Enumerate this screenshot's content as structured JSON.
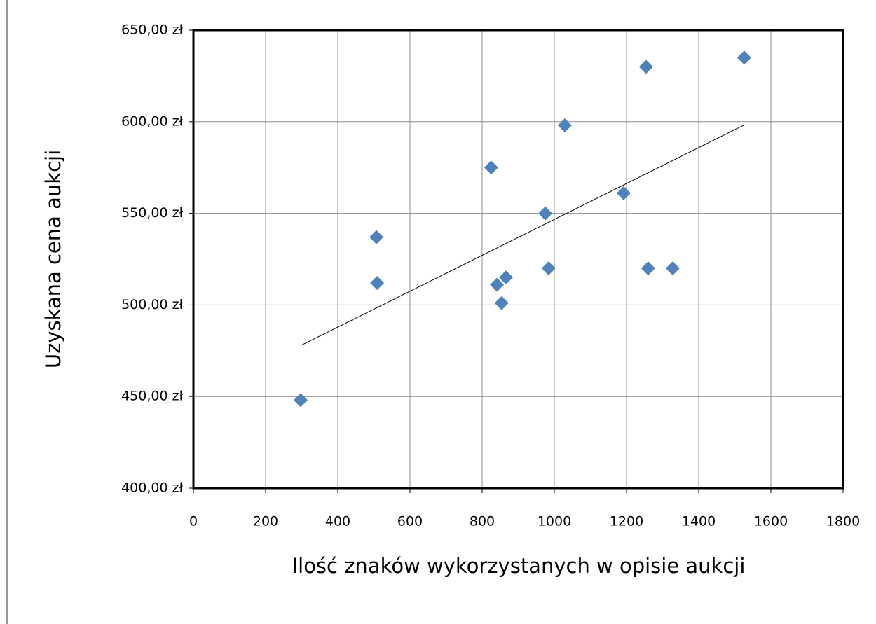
{
  "chart_data": {
    "type": "scatter",
    "xlabel": "Ilość znaków wykorzystanych w opisie aukcji",
    "ylabel": "Uzyskana cena aukcji",
    "x": [
      297,
      507,
      509,
      825,
      841,
      854,
      866,
      975,
      984,
      1029,
      1192,
      1254,
      1260,
      1328,
      1526
    ],
    "values": [
      448,
      537,
      512,
      575,
      511,
      501,
      515,
      550,
      520,
      598,
      561,
      630,
      520,
      520,
      635
    ],
    "color": "#4f81bd",
    "trendline": {
      "x": [
        299,
        1524
      ],
      "y": [
        478,
        598
      ]
    },
    "xlim": [
      0,
      1800
    ],
    "xticks": [
      0,
      200,
      400,
      600,
      800,
      1000,
      1200,
      1400,
      1600,
      1800
    ],
    "ylim": [
      400,
      650
    ],
    "yticks": [
      {
        "value": 400,
        "label": "400,00 zł"
      },
      {
        "value": 450,
        "label": "450,00 zł"
      },
      {
        "value": 500,
        "label": "500,00 zł"
      },
      {
        "value": 550,
        "label": "550,00 zł"
      },
      {
        "value": 600,
        "label": "600,00 zł"
      },
      {
        "value": 650,
        "label": "650,00 zł"
      }
    ],
    "grid": true
  }
}
